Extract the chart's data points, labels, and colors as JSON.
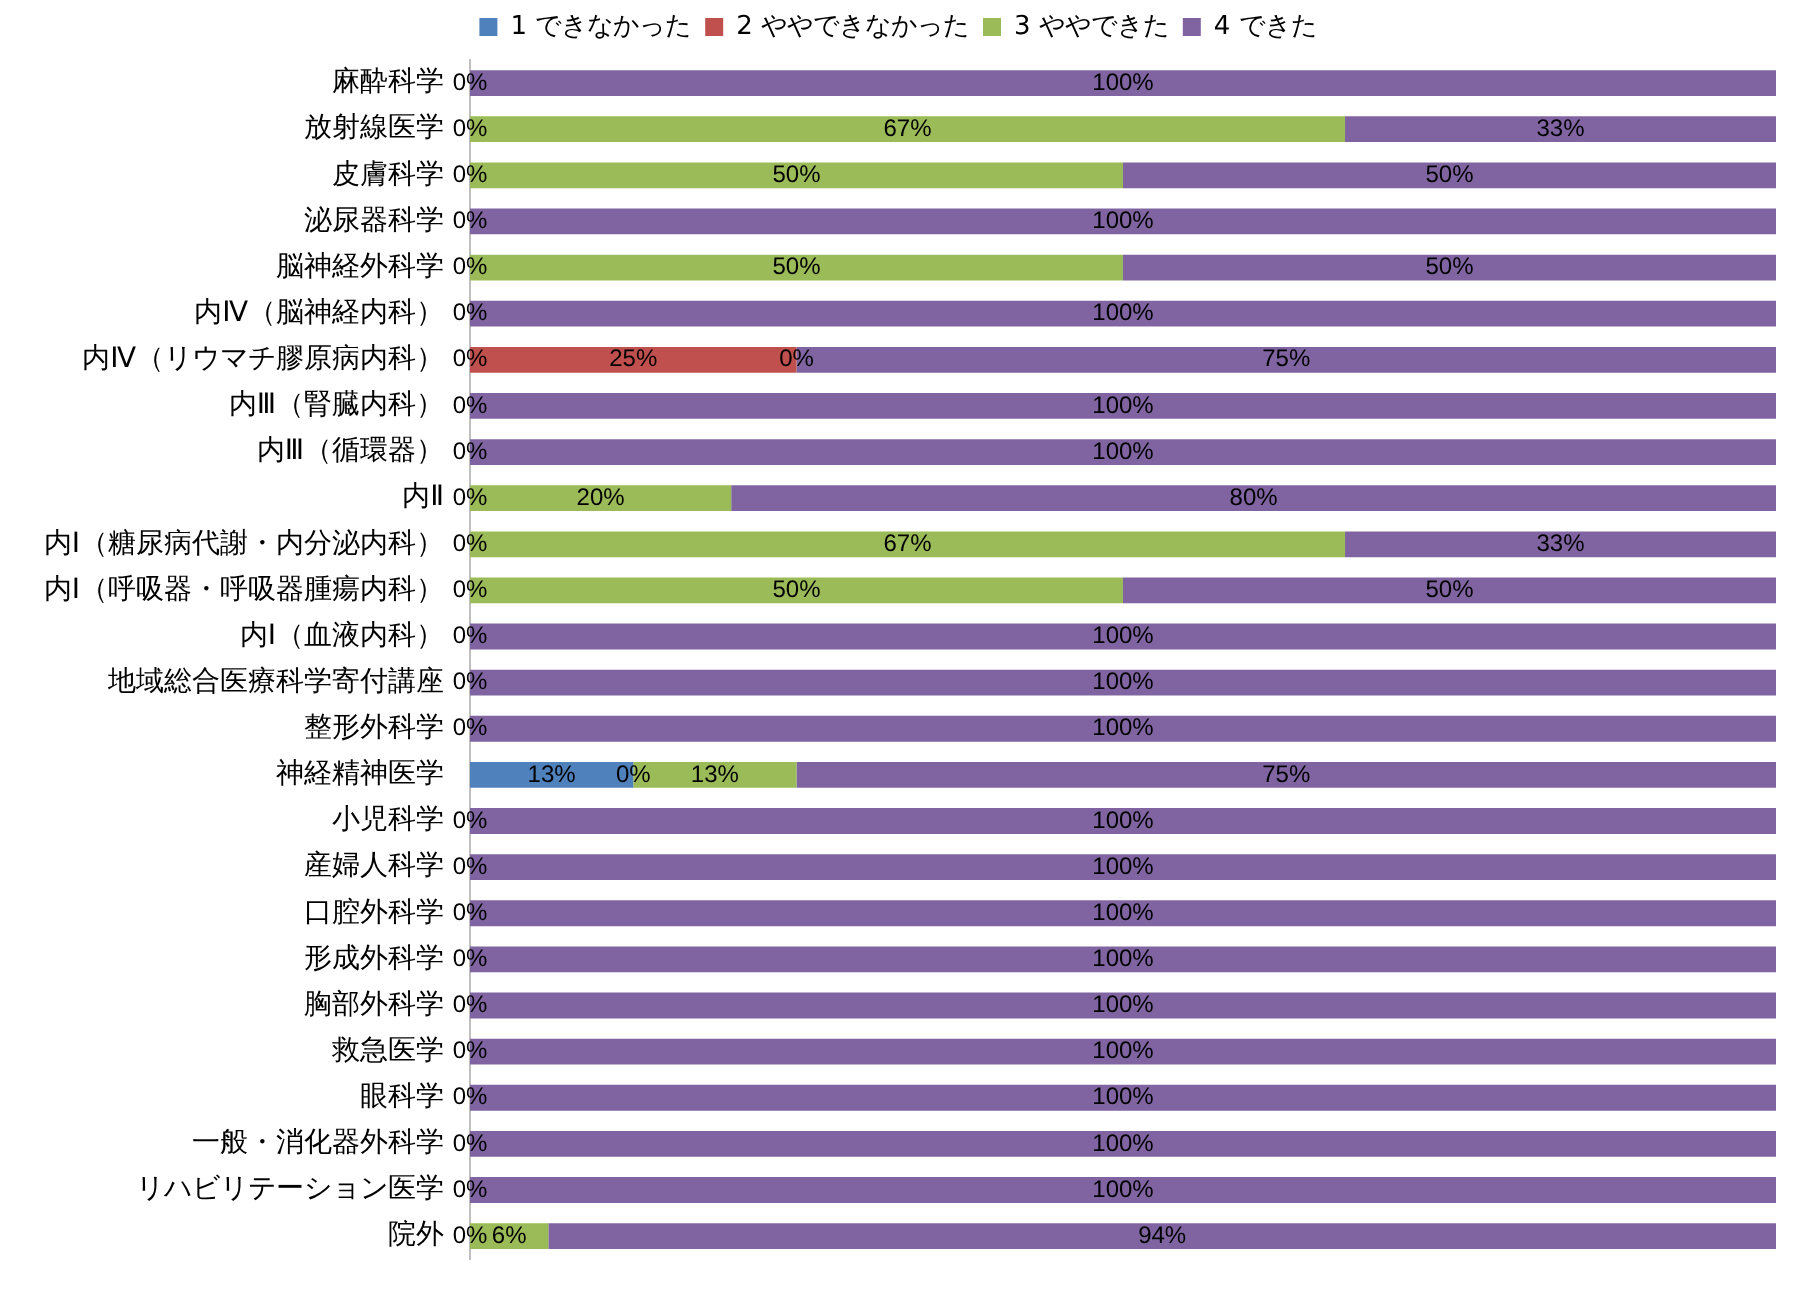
{
  "chart_data": {
    "type": "bar",
    "orientation": "horizontal",
    "stacked": true,
    "legend": "top",
    "tick_labels": "y",
    "grid": false,
    "categories": [
      "麻酔科学",
      "放射線医学",
      "皮膚科学",
      "泌尿器科学",
      "脳神経外科学",
      "内Ⅳ（脳神経内科）",
      "内Ⅳ（リウマチ膠原病内科）",
      "内Ⅲ（腎臓内科）",
      "内Ⅲ（循環器）",
      "内Ⅱ",
      "内Ⅰ（糖尿病代謝・内分泌内科）",
      "内Ⅰ（呼吸器・呼吸器腫瘍内科）",
      "内Ⅰ（血液内科）",
      "地域総合医療科学寄付講座",
      "整形外科学",
      "神経精神医学",
      "小児科学",
      "産婦人科学",
      "口腔外科学",
      "形成外科学",
      "胸部外科学",
      "救急医学",
      "眼科学",
      "一般・消化器外科学",
      "リハビリテーション医学",
      "院外"
    ],
    "series": [
      {
        "name": "1 できなかった",
        "color": "#4f81bd",
        "values": [
          0,
          0,
          0,
          0,
          0,
          0,
          0,
          0,
          0,
          0,
          0,
          0,
          0,
          0,
          0,
          12.5,
          0,
          0,
          0,
          0,
          0,
          0,
          0,
          0,
          0,
          0
        ],
        "value_labels": [
          null,
          null,
          null,
          null,
          null,
          null,
          null,
          null,
          null,
          null,
          null,
          null,
          null,
          null,
          null,
          "13%",
          null,
          null,
          null,
          null,
          null,
          null,
          null,
          null,
          null,
          null
        ]
      },
      {
        "name": "2 ややできなかった",
        "color": "#c0504d",
        "values": [
          0,
          0,
          0,
          0,
          0,
          0,
          25,
          0,
          0,
          0,
          0,
          0,
          0,
          0,
          0,
          0,
          0,
          0,
          0,
          0,
          0,
          0,
          0,
          0,
          0,
          0
        ],
        "value_labels": [
          null,
          null,
          null,
          null,
          null,
          null,
          "25%",
          null,
          null,
          null,
          null,
          null,
          null,
          null,
          null,
          null,
          null,
          null,
          null,
          null,
          null,
          null,
          null,
          null,
          null,
          null
        ]
      },
      {
        "name": "3 ややできた",
        "color": "#9bbb59",
        "values": [
          0,
          67,
          50,
          0,
          50,
          0,
          0,
          0,
          0,
          20,
          67,
          50,
          0,
          0,
          0,
          12.5,
          0,
          0,
          0,
          0,
          0,
          0,
          0,
          0,
          0,
          6
        ],
        "value_labels": [
          null,
          "67%",
          "50%",
          null,
          "50%",
          null,
          null,
          null,
          null,
          "20%",
          "67%",
          "50%",
          null,
          null,
          null,
          "13%",
          null,
          null,
          null,
          null,
          null,
          null,
          null,
          null,
          null,
          "6%"
        ]
      },
      {
        "name": "4 できた",
        "color": "#8064a2",
        "values": [
          100,
          33,
          50,
          100,
          50,
          100,
          75,
          100,
          100,
          80,
          33,
          50,
          100,
          100,
          100,
          75,
          100,
          100,
          100,
          100,
          100,
          100,
          100,
          100,
          100,
          94
        ],
        "value_labels": [
          "100%",
          "33%",
          "50%",
          "100%",
          "50%",
          "100%",
          "75%",
          "100%",
          "100%",
          "80%",
          "33%",
          "50%",
          "100%",
          "100%",
          "100%",
          "75%",
          "100%",
          "100%",
          "100%",
          "100%",
          "100%",
          "100%",
          "100%",
          "100%",
          "100%",
          "94%"
        ]
      }
    ],
    "annotations": [
      {
        "text": "0%",
        "x": 0,
        "y": "麻酔科学"
      },
      {
        "text": "0%",
        "x": 0,
        "y": "放射線医学"
      },
      {
        "text": "0%",
        "x": 0,
        "y": "皮膚科学"
      },
      {
        "text": "0%",
        "x": 0,
        "y": "泌尿器科学"
      },
      {
        "text": "0%",
        "x": 0,
        "y": "脳神経外科学"
      },
      {
        "text": "0%",
        "x": 0,
        "y": "内Ⅳ（脳神経内科）"
      },
      {
        "text": "0%",
        "x": 0,
        "y": "内Ⅳ（リウマチ膠原病内科）"
      },
      {
        "text": "0%",
        "x": 25,
        "y": "内Ⅳ（リウマチ膠原病内科）"
      },
      {
        "text": "0%",
        "x": 0,
        "y": "内Ⅲ（腎臓内科）"
      },
      {
        "text": "0%",
        "x": 0,
        "y": "内Ⅲ（循環器）"
      },
      {
        "text": "0%",
        "x": 0,
        "y": "内Ⅱ"
      },
      {
        "text": "0%",
        "x": 0,
        "y": "内Ⅰ（糖尿病代謝・内分泌内科）"
      },
      {
        "text": "0%",
        "x": 0,
        "y": "内Ⅰ（呼吸器・呼吸器腫瘍内科）"
      },
      {
        "text": "0%",
        "x": 0,
        "y": "内Ⅰ（血液内科）"
      },
      {
        "text": "0%",
        "x": 0,
        "y": "地域総合医療科学寄付講座"
      },
      {
        "text": "0%",
        "x": 0,
        "y": "整形外科学"
      },
      {
        "text": "0%",
        "x": 12.5,
        "y": "神経精神医学"
      },
      {
        "text": "0%",
        "x": 0,
        "y": "小児科学"
      },
      {
        "text": "0%",
        "x": 0,
        "y": "産婦人科学"
      },
      {
        "text": "0%",
        "x": 0,
        "y": "口腔外科学"
      },
      {
        "text": "0%",
        "x": 0,
        "y": "形成外科学"
      },
      {
        "text": "0%",
        "x": 0,
        "y": "胸部外科学"
      },
      {
        "text": "0%",
        "x": 0,
        "y": "救急医学"
      },
      {
        "text": "0%",
        "x": 0,
        "y": "眼科学"
      },
      {
        "text": "0%",
        "x": 0,
        "y": "一般・消化器外科学"
      },
      {
        "text": "0%",
        "x": 0,
        "y": "リハビリテーション医学"
      },
      {
        "text": "0%",
        "x": 0,
        "y": "院外"
      }
    ]
  }
}
